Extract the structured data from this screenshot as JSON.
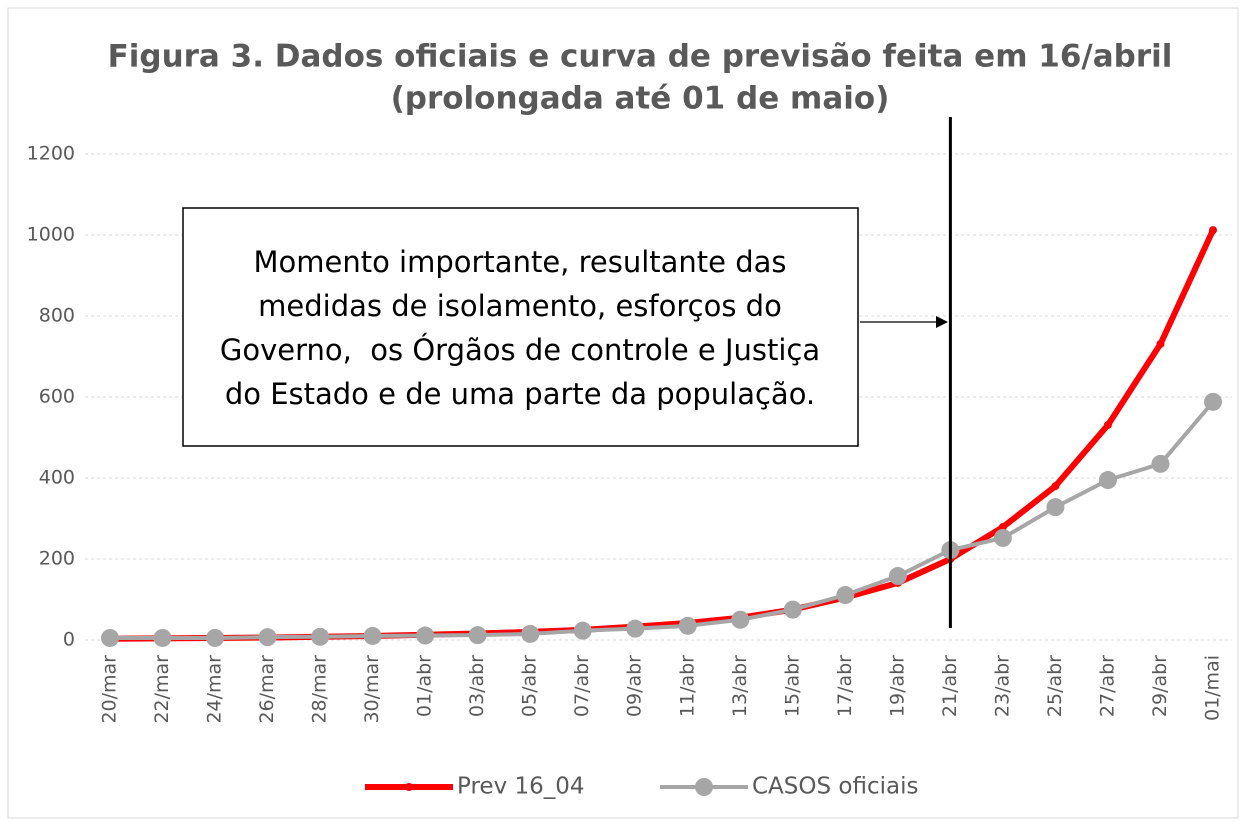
{
  "chart_data": {
    "type": "line",
    "title": [
      "Figura 3. Dados oficiais e curva de previsão feita em 16/abril",
      "(prolongada até 01 de maio)"
    ],
    "categories": [
      "20/mar",
      "22/mar",
      "24/mar",
      "26/mar",
      "28/mar",
      "30/mar",
      "01/abr",
      "03/abr",
      "05/abr",
      "07/abr",
      "09/abr",
      "11/abr",
      "13/abr",
      "15/abr",
      "17/abr",
      "19/abr",
      "21/abr",
      "23/abr",
      "25/abr",
      "27/abr",
      "29/abr",
      "01/mai"
    ],
    "series": [
      {
        "name": "Prev 16_04",
        "color": "#ff0000",
        "values": [
          3,
          4,
          5,
          6,
          8,
          10,
          13,
          16,
          20,
          25,
          33,
          42,
          55,
          75,
          105,
          141,
          200,
          279,
          380,
          531,
          731,
          1012
        ]
      },
      {
        "name": "CASOS oficiais",
        "color": "#a6a6a6",
        "values": [
          5,
          5,
          5,
          7,
          8,
          10,
          11,
          12,
          15,
          23,
          28,
          35,
          50,
          75,
          111,
          158,
          222,
          252,
          328,
          395,
          435,
          588
        ]
      }
    ],
    "ylim": [
      0,
      1200
    ],
    "yticks": [
      0,
      200,
      400,
      600,
      800,
      1000,
      1200
    ],
    "grid": true,
    "legend": "bottom",
    "annotation": [
      "Momento importante, resultante das",
      "medidas de isolamento, esforços do",
      "Governo,  os Órgãos de controle e Justiça",
      "do Estado e de uma parte da população."
    ]
  }
}
